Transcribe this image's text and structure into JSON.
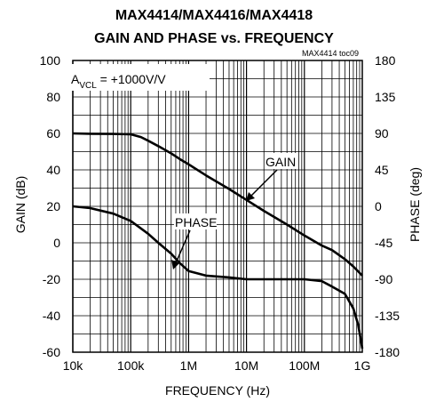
{
  "chart_data": {
    "type": "line",
    "title_line1": "MAX4414/MAX4416/MAX4418",
    "title_line2": "GAIN AND PHASE vs. FREQUENCY",
    "figure_code": "MAX4414 toc09",
    "annotation_gain_cond": "A",
    "annotation_sub": "VCL",
    "annotation_value": " = +1000V/V",
    "xlabel": "FREQUENCY (Hz)",
    "ylabel_left": "GAIN (dB)",
    "ylabel_right": "PHASE (deg)",
    "xscale": "log",
    "xlim": [
      10000,
      1000000000
    ],
    "ylim_left": [
      -60,
      100
    ],
    "ylim_right": [
      -180,
      180
    ],
    "x_ticks": [
      {
        "value": 10000,
        "label": "10k"
      },
      {
        "value": 100000,
        "label": "100k"
      },
      {
        "value": 1000000,
        "label": "1M"
      },
      {
        "value": 10000000,
        "label": "10M"
      },
      {
        "value": 100000000,
        "label": "100M"
      },
      {
        "value": 1000000000,
        "label": "1G"
      }
    ],
    "y_ticks_left": [
      {
        "value": 100,
        "label": "100"
      },
      {
        "value": 80,
        "label": "80"
      },
      {
        "value": 60,
        "label": "60"
      },
      {
        "value": 40,
        "label": "40"
      },
      {
        "value": 20,
        "label": "20"
      },
      {
        "value": 0,
        "label": "0"
      },
      {
        "value": -20,
        "label": "-20"
      },
      {
        "value": -40,
        "label": "-40"
      },
      {
        "value": -60,
        "label": "-60"
      }
    ],
    "y_ticks_right": [
      {
        "value": 180,
        "label": "180"
      },
      {
        "value": 135,
        "label": "135"
      },
      {
        "value": 90,
        "label": "90"
      },
      {
        "value": 45,
        "label": "45"
      },
      {
        "value": 0,
        "label": "0"
      },
      {
        "value": -45,
        "label": "-45"
      },
      {
        "value": -90,
        "label": "-90"
      },
      {
        "value": -135,
        "label": "-135"
      },
      {
        "value": -180,
        "label": "-180"
      }
    ],
    "grid": true,
    "series": [
      {
        "name": "GAIN",
        "axis": "left",
        "x": [
          10000,
          20000,
          50000,
          100000,
          150000,
          200000,
          300000,
          500000,
          700000,
          1000000,
          2000000,
          5000000,
          10000000,
          20000000,
          50000000,
          100000000,
          200000000,
          300000000,
          500000000,
          700000000,
          1000000000
        ],
        "y": [
          60,
          59.8,
          59.7,
          59.5,
          58,
          56,
          53,
          49,
          46,
          43,
          37,
          29.5,
          23.5,
          17.5,
          10,
          4,
          -1.5,
          -4,
          -9,
          -13,
          -18
        ]
      },
      {
        "name": "PHASE",
        "axis": "left",
        "x": [
          10000,
          20000,
          50000,
          100000,
          200000,
          300000,
          500000,
          700000,
          1000000,
          2000000,
          5000000,
          10000000,
          20000000,
          50000000,
          100000000,
          200000000,
          300000000,
          500000000,
          700000000,
          850000000,
          1000000000
        ],
        "y": [
          20,
          19,
          16,
          12,
          5,
          0,
          -6,
          -11,
          -15.5,
          -18,
          -19,
          -20,
          -20,
          -20,
          -20,
          -21,
          -24,
          -28,
          -36,
          -45,
          -58
        ]
      }
    ],
    "annotations": [
      {
        "text": "GAIN",
        "series": "GAIN"
      },
      {
        "text": "PHASE",
        "series": "PHASE"
      }
    ]
  }
}
